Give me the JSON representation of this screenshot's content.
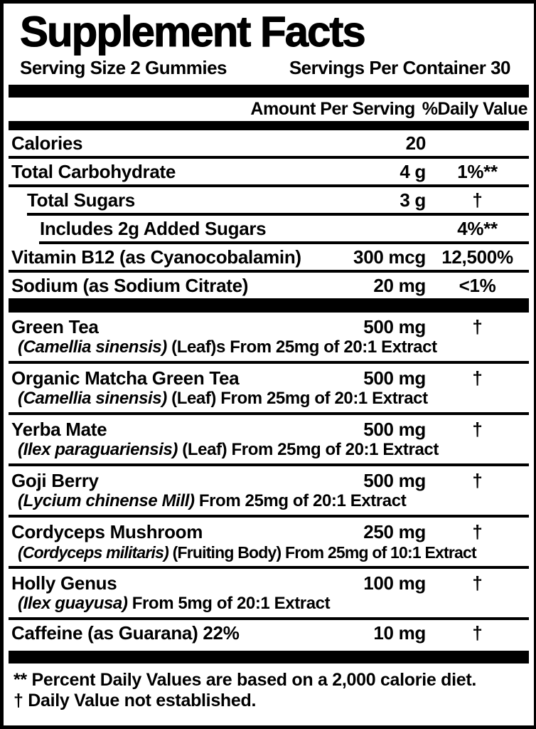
{
  "label": {
    "title": "Supplement Facts",
    "serving_size": "Serving Size 2 Gummies",
    "servings_per_container": "Servings Per Container 30",
    "columns": {
      "amount": "Amount Per Serving",
      "daily_value": "%Daily Value"
    },
    "rows": [
      {
        "name": "Calories",
        "amount": "20",
        "dv": ""
      },
      {
        "name": "Total Carbohydrate",
        "amount": "4 g",
        "dv": "1%**"
      },
      {
        "name": "Total Sugars",
        "amount": "3 g",
        "dv": "†"
      },
      {
        "name": "Includes 2g Added Sugars",
        "amount": "",
        "dv": "4%**"
      },
      {
        "name": "Vitamin B12 (as Cyanocobalamin)",
        "amount": "300 mcg",
        "dv": "12,500%"
      },
      {
        "name": "Sodium (as Sodium Citrate)",
        "amount": "20 mg",
        "dv": "<1%"
      },
      {
        "name": "Green Tea",
        "amount": "500 mg",
        "dv": "†",
        "latin": "(Camellia sinensis)",
        "detail": " (Leaf)s From 25mg of 20:1 Extract"
      },
      {
        "name": "Organic Matcha Green Tea",
        "amount": "500 mg",
        "dv": "†",
        "latin": "(Camellia sinensis)",
        "detail": " (Leaf) From 25mg of 20:1 Extract"
      },
      {
        "name": "Yerba Mate",
        "amount": "500 mg",
        "dv": "†",
        "latin": "(Ilex paraguariensis)",
        "detail": " (Leaf) From 25mg of 20:1 Extract"
      },
      {
        "name": "Goji Berry",
        "amount": "500 mg",
        "dv": "†",
        "latin": "(Lycium chinense Mill)",
        "detail": " From 25mg of 20:1 Extract"
      },
      {
        "name": "Cordyceps Mushroom",
        "amount": "250 mg",
        "dv": "†",
        "latin": "(Cordyceps militaris)",
        "detail": " (Fruiting Body) From 25mg of 10:1 Extract"
      },
      {
        "name": "Holly Genus",
        "amount": "100 mg",
        "dv": "†",
        "latin": "(Ilex guayusa)",
        "detail": " From 5mg of 20:1 Extract"
      },
      {
        "name": "Caffeine (as Guarana) 22%",
        "amount": "10 mg",
        "dv": "†"
      }
    ],
    "footnotes": {
      "percent": "** Percent Daily Values are based on a 2,000 calorie diet.",
      "dagger": "† Daily Value not established."
    },
    "colors": {
      "ink": "#000000",
      "paper": "#ffffff"
    }
  }
}
